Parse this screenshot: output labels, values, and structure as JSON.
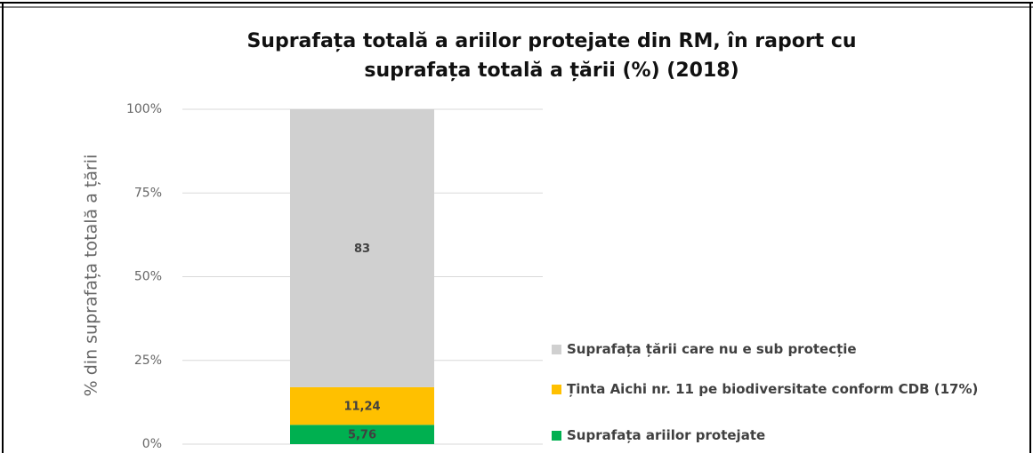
{
  "chart_data": {
    "type": "stacked_bar",
    "title": "Suprafața totală a ariilor protejate din RM, în raport cu suprafața totală a țării (%) (2018)",
    "y_label": "% din suprafața totală a țării",
    "categories": [
      null
    ],
    "series": [
      {
        "name": "Suprafața ariilor protejate",
        "color": "#00b050",
        "values": [
          5.76
        ],
        "value_labels": [
          "5,76"
        ]
      },
      {
        "name": "Ținta Aichi nr. 11 pe biodiversitate conform CDB (17%)",
        "color": "#ffc000",
        "values": [
          11.24
        ],
        "value_labels": [
          "11,24"
        ]
      },
      {
        "name": "Suprafața țării care nu e sub protecție",
        "color": "#d0d0d0",
        "values": [
          83
        ],
        "value_labels": [
          "83"
        ]
      }
    ],
    "ylim": [
      0,
      100
    ],
    "yticks": [
      {
        "value": 0,
        "label": "0%"
      },
      {
        "value": 25,
        "label": "25%"
      },
      {
        "value": 50,
        "label": "50%"
      },
      {
        "value": 75,
        "label": "75%"
      },
      {
        "value": 100,
        "label": "100%"
      }
    ],
    "grid": true,
    "legend": "right"
  }
}
